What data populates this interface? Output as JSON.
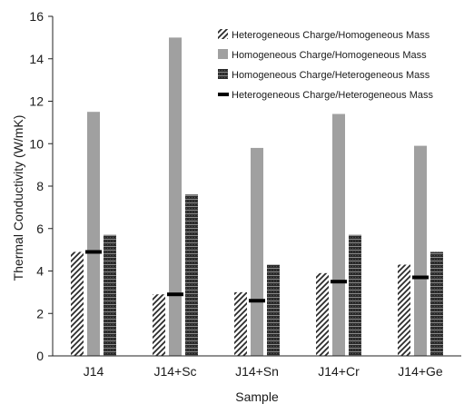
{
  "chart_data": {
    "type": "bar",
    "title": "",
    "xlabel": "Sample",
    "ylabel": "Thermal Conductivity (W/mK)",
    "ylim": [
      0,
      16
    ],
    "yticks": [
      0,
      2,
      4,
      6,
      8,
      10,
      12,
      14,
      16
    ],
    "grid": false,
    "legend_position": "top-right",
    "categories": [
      "J14",
      "J14+Sc",
      "J14+Sn",
      "J14+Cr",
      "J14+Ge"
    ],
    "series": [
      {
        "name": "Heterogeneous Charge/Homogeneous Mass",
        "style": "diagonal-hatch-bar",
        "color": "#333333",
        "values": [
          4.9,
          2.9,
          3.0,
          3.9,
          4.3
        ]
      },
      {
        "name": "Homogeneous Charge/Homogeneous Mass",
        "style": "solid-bar",
        "color": "#a0a0a0",
        "values": [
          11.5,
          15.0,
          9.8,
          11.4,
          9.9
        ]
      },
      {
        "name": "Homogeneous Charge/Heterogeneous Mass",
        "style": "horizontal-stripe-bar",
        "color": "#2a2a2a",
        "values": [
          5.7,
          7.6,
          4.3,
          5.7,
          4.9
        ]
      },
      {
        "name": "Heterogeneous Charge/Heterogeneous Mass",
        "style": "dash-marker",
        "color": "#000000",
        "values": [
          4.9,
          2.9,
          2.6,
          3.5,
          3.7
        ]
      }
    ]
  }
}
